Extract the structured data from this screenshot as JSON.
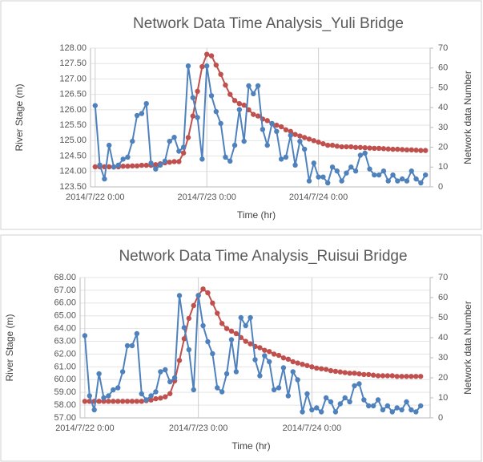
{
  "chart_data": [
    {
      "type": "line",
      "title": "Network Data Time Analysis_Yuli Bridge",
      "xlabel": "Time (hr)",
      "ylabel": "River Stage (m)",
      "y2label": "Network data Number",
      "grid": true,
      "x": [
        0,
        1,
        2,
        3,
        4,
        5,
        6,
        7,
        8,
        9,
        10,
        11,
        12,
        13,
        14,
        15,
        16,
        17,
        18,
        19,
        20,
        21,
        22,
        23,
        24,
        25,
        26,
        27,
        28,
        29,
        30,
        31,
        32,
        33,
        34,
        35,
        36,
        37,
        38,
        39,
        40,
        41,
        42,
        43,
        44,
        45,
        46,
        47,
        48,
        49,
        50,
        51,
        52,
        53,
        54,
        55,
        56,
        57,
        58,
        59,
        60,
        61,
        62,
        63,
        64,
        65,
        66,
        67,
        68,
        69,
        70,
        71
      ],
      "xlim": [
        -1,
        72
      ],
      "xticks": [
        {
          "value": 0,
          "label": "2014/7/22 0:00"
        },
        {
          "value": 24,
          "label": "2014/7/23 0:00"
        },
        {
          "value": 48,
          "label": "2014/7/24 0:00"
        }
      ],
      "ylim": [
        123.5,
        128
      ],
      "yticks": [
        {
          "value": 123.5,
          "label": "123.50"
        },
        {
          "value": 124,
          "label": "124.00"
        },
        {
          "value": 124.5,
          "label": "124.50"
        },
        {
          "value": 125,
          "label": "125.00"
        },
        {
          "value": 125.5,
          "label": "125.50"
        },
        {
          "value": 126,
          "label": "126.00"
        },
        {
          "value": 126.5,
          "label": "126.50"
        },
        {
          "value": 127,
          "label": "127.00"
        },
        {
          "value": 127.5,
          "label": "127.50"
        },
        {
          "value": 128,
          "label": "128.00"
        }
      ],
      "y2lim": [
        0,
        70
      ],
      "y2ticks": [
        0,
        10,
        20,
        30,
        40,
        50,
        60,
        70
      ],
      "series": [
        {
          "color": "#c0504d",
          "values": [
            124.15,
            124.15,
            124.15,
            124.15,
            124.15,
            124.15,
            124.17,
            124.17,
            124.18,
            124.18,
            124.2,
            124.2,
            124.2,
            124.22,
            124.25,
            124.28,
            124.3,
            124.32,
            124.32,
            124.6,
            125.1,
            125.8,
            126.6,
            127.4,
            127.8,
            127.75,
            127.45,
            127.15,
            126.8,
            126.5,
            126.3,
            126.2,
            126.15,
            126.0,
            125.85,
            125.8,
            125.7,
            125.65,
            125.55,
            125.5,
            125.45,
            125.35,
            125.3,
            125.2,
            125.15,
            125.1,
            125.05,
            125.0,
            124.95,
            124.9,
            124.85,
            124.85,
            124.82,
            124.8,
            124.8,
            124.8,
            124.78,
            124.78,
            124.77,
            124.76,
            124.75,
            124.75,
            124.74,
            124.73,
            124.72,
            124.72,
            124.71,
            124.7,
            124.7,
            124.69,
            124.68,
            124.68
          ]
        },
        {
          "color": "#4f81bd",
          "axis": "y2",
          "values": [
            41,
            11,
            4,
            21,
            10,
            11,
            14,
            15,
            23,
            36,
            37,
            42,
            12,
            9,
            11,
            13,
            23,
            25,
            18,
            20,
            61,
            45,
            35,
            14,
            61,
            46,
            38,
            32,
            15,
            13,
            21,
            39,
            23,
            51,
            47,
            51,
            29,
            21,
            32,
            28,
            14,
            15,
            26,
            11,
            23,
            19,
            3,
            12,
            5,
            5,
            2,
            10,
            8,
            3,
            7,
            10,
            8,
            16,
            17,
            9,
            6,
            6,
            8,
            3,
            6,
            3,
            4,
            3,
            8,
            4,
            2,
            6
          ]
        }
      ]
    },
    {
      "type": "line",
      "title": "Network Data Time Analysis_Ruisui Bridge",
      "xlabel": "Time (hr)",
      "ylabel": "River Stage (m)",
      "y2label": "Network data Number",
      "grid": true,
      "x": [
        0,
        1,
        2,
        3,
        4,
        5,
        6,
        7,
        8,
        9,
        10,
        11,
        12,
        13,
        14,
        15,
        16,
        17,
        18,
        19,
        20,
        21,
        22,
        23,
        24,
        25,
        26,
        27,
        28,
        29,
        30,
        31,
        32,
        33,
        34,
        35,
        36,
        37,
        38,
        39,
        40,
        41,
        42,
        43,
        44,
        45,
        46,
        47,
        48,
        49,
        50,
        51,
        52,
        53,
        54,
        55,
        56,
        57,
        58,
        59,
        60,
        61,
        62,
        63,
        64,
        65,
        66,
        67,
        68,
        69,
        70,
        71
      ],
      "xlim": [
        -1,
        73
      ],
      "xticks": [
        {
          "value": 0,
          "label": "2014/7/22 0:00"
        },
        {
          "value": 24,
          "label": "2014/7/23 0:00"
        },
        {
          "value": 48,
          "label": "2014/7/24 0:00"
        }
      ],
      "ylim": [
        57,
        68
      ],
      "yticks": [
        {
          "value": 57,
          "label": "57.00"
        },
        {
          "value": 58,
          "label": "58.00"
        },
        {
          "value": 59,
          "label": "59.00"
        },
        {
          "value": 60,
          "label": "60.00"
        },
        {
          "value": 61,
          "label": "61.00"
        },
        {
          "value": 62,
          "label": "62.00"
        },
        {
          "value": 63,
          "label": "63.00"
        },
        {
          "value": 64,
          "label": "64.00"
        },
        {
          "value": 65,
          "label": "65.00"
        },
        {
          "value": 66,
          "label": "66.00"
        },
        {
          "value": 67,
          "label": "67.00"
        },
        {
          "value": 68,
          "label": "68.00"
        }
      ],
      "y2lim": [
        0,
        70
      ],
      "y2ticks": [
        0,
        10,
        20,
        30,
        40,
        50,
        60,
        70
      ],
      "series": [
        {
          "color": "#c0504d",
          "values": [
            58.3,
            58.3,
            58.3,
            58.3,
            58.3,
            58.3,
            58.3,
            58.3,
            58.3,
            58.3,
            58.3,
            58.3,
            58.3,
            58.35,
            58.4,
            58.5,
            58.55,
            58.65,
            58.9,
            59.9,
            61.5,
            63.2,
            64.8,
            65.8,
            66.6,
            67.1,
            66.8,
            66.0,
            65.2,
            64.4,
            64.0,
            63.8,
            63.6,
            63.3,
            63.0,
            62.8,
            62.6,
            62.5,
            62.3,
            62.2,
            62.0,
            61.9,
            61.7,
            61.6,
            61.4,
            61.3,
            61.2,
            61.1,
            61.0,
            60.9,
            60.85,
            60.8,
            60.7,
            60.65,
            60.6,
            60.55,
            60.5,
            60.5,
            60.45,
            60.4,
            60.4,
            60.35,
            60.3,
            60.3,
            60.3,
            60.3,
            60.25,
            60.25,
            60.25,
            60.25,
            60.25,
            60.25
          ]
        },
        {
          "color": "#4f81bd",
          "axis": "y2",
          "values": [
            41,
            11,
            4,
            22,
            10,
            11,
            14,
            15,
            23,
            36,
            36,
            42,
            12,
            9,
            11,
            13,
            23,
            24,
            18,
            20,
            61,
            45,
            34,
            14,
            61,
            46,
            38,
            32,
            15,
            13,
            22,
            39,
            23,
            50,
            46,
            50,
            29,
            21,
            31,
            28,
            14,
            15,
            25,
            11,
            23,
            19,
            3,
            12,
            4,
            5,
            3,
            10,
            8,
            3,
            7,
            10,
            8,
            16,
            17,
            9,
            6,
            6,
            9,
            4,
            6,
            3,
            5,
            4,
            8,
            4,
            3,
            6
          ]
        }
      ]
    }
  ]
}
